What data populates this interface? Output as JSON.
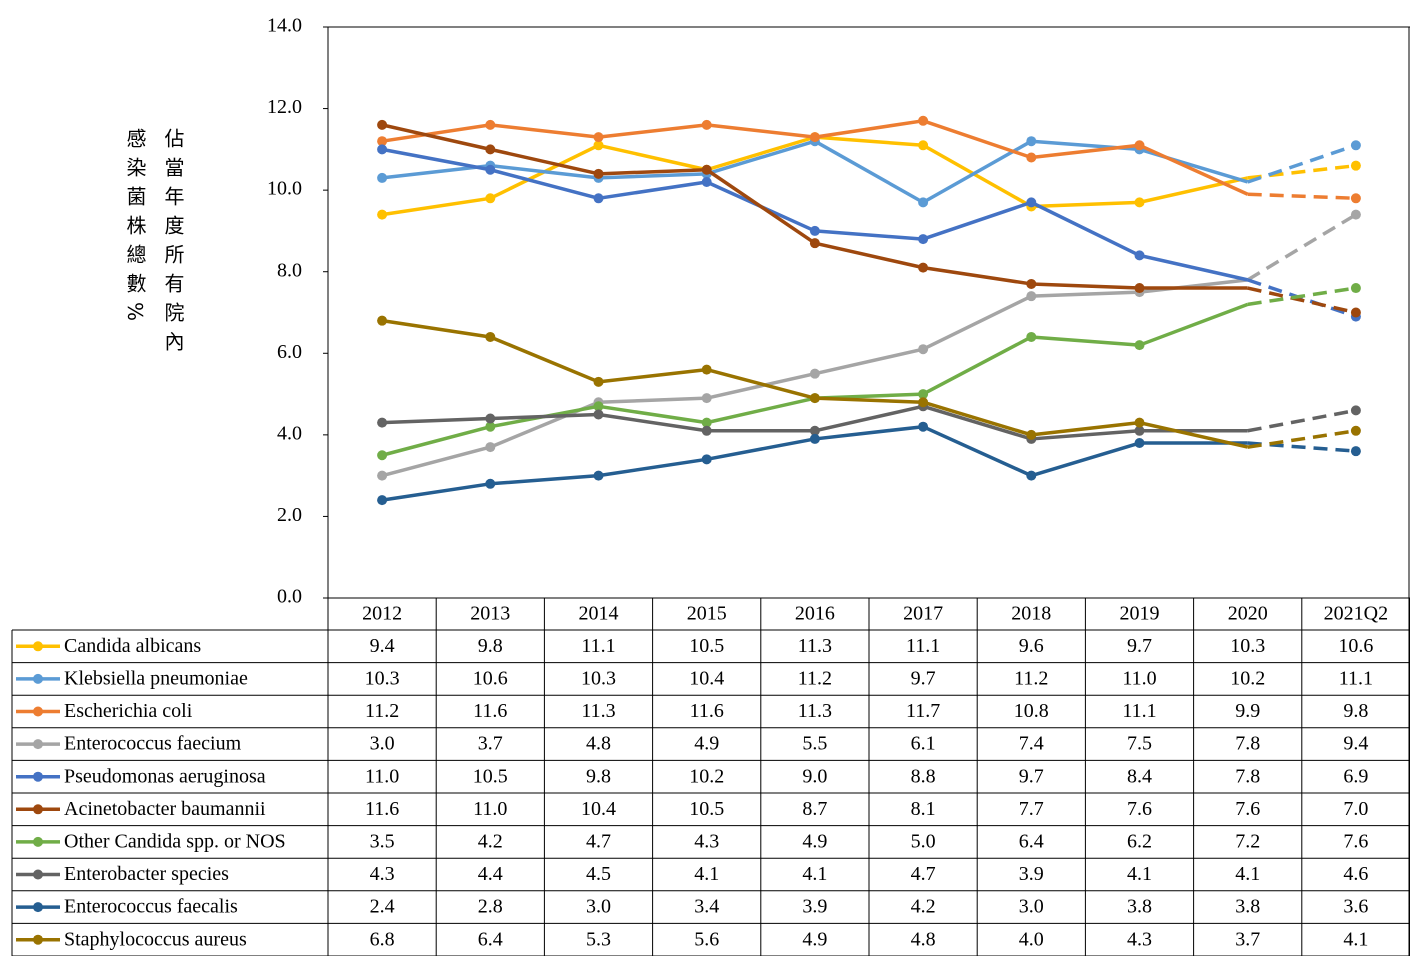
{
  "chart_data": {
    "type": "line",
    "y_label": "佔當年度所有院內感染菌株總數%",
    "categories": [
      "2012",
      "2013",
      "2014",
      "2015",
      "2016",
      "2017",
      "2018",
      "2019",
      "2020",
      "2021Q2"
    ],
    "ylim": [
      0,
      14
    ],
    "yticks": [
      {
        "value": 0,
        "label": "0.0"
      },
      {
        "value": 2,
        "label": "2.0"
      },
      {
        "value": 4,
        "label": "4.0"
      },
      {
        "value": 6,
        "label": "6.0"
      },
      {
        "value": 8,
        "label": "8.0"
      },
      {
        "value": 10,
        "label": "10.0"
      },
      {
        "value": 12,
        "label": "12.0"
      },
      {
        "value": 14,
        "label": "14.0"
      }
    ],
    "series": [
      {
        "name": "Candida albicans",
        "color": "#FFC000",
        "values": [
          9.4,
          9.8,
          11.1,
          10.5,
          11.3,
          11.1,
          9.6,
          9.7,
          10.3,
          10.6
        ],
        "value_labels": [
          "9.4",
          "9.8",
          "11.1",
          "10.5",
          "11.3",
          "11.1",
          "9.6",
          "9.7",
          "10.3",
          "10.6"
        ]
      },
      {
        "name": "Klebsiella pneumoniae",
        "color": "#5B9BD5",
        "values": [
          10.3,
          10.6,
          10.3,
          10.4,
          11.2,
          9.7,
          11.2,
          11,
          10.2,
          11.1
        ],
        "value_labels": [
          "10.3",
          "10.6",
          "10.3",
          "10.4",
          "11.2",
          "9.7",
          "11.2",
          "11.0",
          "10.2",
          "11.1"
        ]
      },
      {
        "name": "Escherichia coli",
        "color": "#ED7D31",
        "values": [
          11.2,
          11.6,
          11.3,
          11.6,
          11.3,
          11.7,
          10.8,
          11.1,
          9.9,
          9.8
        ],
        "value_labels": [
          "11.2",
          "11.6",
          "11.3",
          "11.6",
          "11.3",
          "11.7",
          "10.8",
          "11.1",
          "9.9",
          "9.8"
        ]
      },
      {
        "name": "Enterococcus faecium",
        "color": "#A5A5A5",
        "values": [
          3,
          3.7,
          4.8,
          4.9,
          5.5,
          6.1,
          7.4,
          7.5,
          7.8,
          9.4
        ],
        "value_labels": [
          "3.0",
          "3.7",
          "4.8",
          "4.9",
          "5.5",
          "6.1",
          "7.4",
          "7.5",
          "7.8",
          "9.4"
        ]
      },
      {
        "name": "Pseudomonas aeruginosa",
        "color": "#4472C4",
        "values": [
          11,
          10.5,
          9.8,
          10.2,
          9,
          8.8,
          9.7,
          8.4,
          7.8,
          6.9
        ],
        "value_labels": [
          "11.0",
          "10.5",
          "9.8",
          "10.2",
          "9.0",
          "8.8",
          "9.7",
          "8.4",
          "7.8",
          "6.9"
        ]
      },
      {
        "name": "Acinetobacter baumannii",
        "color": "#9E480E",
        "values": [
          11.6,
          11,
          10.4,
          10.5,
          8.7,
          8.1,
          7.7,
          7.6,
          7.6,
          7
        ],
        "value_labels": [
          "11.6",
          "11.0",
          "10.4",
          "10.5",
          "8.7",
          "8.1",
          "7.7",
          "7.6",
          "7.6",
          "7.0"
        ]
      },
      {
        "name": "Other Candida spp. or NOS",
        "color": "#70AD47",
        "values": [
          3.5,
          4.2,
          4.7,
          4.3,
          4.9,
          5,
          6.4,
          6.2,
          7.2,
          7.6
        ],
        "value_labels": [
          "3.5",
          "4.2",
          "4.7",
          "4.3",
          "4.9",
          "5.0",
          "6.4",
          "6.2",
          "7.2",
          "7.6"
        ]
      },
      {
        "name": "Enterobacter species",
        "color": "#636363",
        "values": [
          4.3,
          4.4,
          4.5,
          4.1,
          4.1,
          4.7,
          3.9,
          4.1,
          4.1,
          4.6
        ],
        "value_labels": [
          "4.3",
          "4.4",
          "4.5",
          "4.1",
          "4.1",
          "4.7",
          "3.9",
          "4.1",
          "4.1",
          "4.6"
        ]
      },
      {
        "name": "Enterococcus faecalis",
        "color": "#255E91",
        "values": [
          2.4,
          2.8,
          3,
          3.4,
          3.9,
          4.2,
          3,
          3.8,
          3.8,
          3.6
        ],
        "value_labels": [
          "2.4",
          "2.8",
          "3.0",
          "3.4",
          "3.9",
          "4.2",
          "3.0",
          "3.8",
          "3.8",
          "3.6"
        ]
      },
      {
        "name": "Staphylococcus aureus",
        "color": "#997300",
        "values": [
          6.8,
          6.4,
          5.3,
          5.6,
          4.9,
          4.8,
          4,
          4.3,
          3.7,
          4.1
        ],
        "value_labels": [
          "6.8",
          "6.4",
          "5.3",
          "5.6",
          "4.9",
          "4.8",
          "4.0",
          "4.3",
          "3.7",
          "4.1"
        ]
      }
    ]
  }
}
